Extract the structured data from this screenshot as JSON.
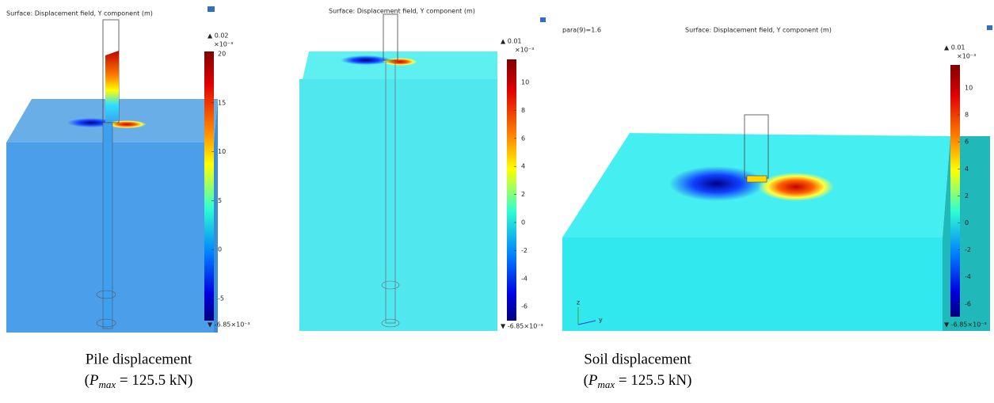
{
  "panels": [
    {
      "title": "Surface: Displacement field, Y component (m)",
      "max_label": "▲ 0.02",
      "exponent": "×10⁻³",
      "ticks": [
        "20",
        "15",
        "10",
        "5",
        "0",
        "-5"
      ],
      "min_label": "▼ -6.85×10⁻³"
    },
    {
      "title": "Surface: Displacement field, Y component (m)",
      "max_label": "▲ 0.01",
      "exponent": "×10⁻³",
      "ticks": [
        "10",
        "8",
        "6",
        "4",
        "2",
        "0",
        "-2",
        "-4",
        "-6"
      ],
      "min_label": "▼ -6.85×10⁻³"
    },
    {
      "corner_label": "para(9)=1.6",
      "title": "Surface: Displacement field, Y component (m)",
      "max_label": "▲ 0.01",
      "exponent": "×10⁻³",
      "ticks": [
        "10",
        "8",
        "6",
        "4",
        "2",
        "0",
        "-2",
        "-4",
        "-6"
      ],
      "min_label": "▼ -6.85×10⁻³",
      "axis_z": "z",
      "axis_y": "y"
    }
  ],
  "captions": [
    {
      "line1": "Pile displacement",
      "open": "(",
      "symbol": "P",
      "subscript": "max",
      "rest": " = 125.5 kN)"
    },
    {
      "line1": "Soil displacement",
      "open": "(",
      "symbol": "P",
      "subscript": "max",
      "rest": " = 125.5 kN)"
    }
  ]
}
